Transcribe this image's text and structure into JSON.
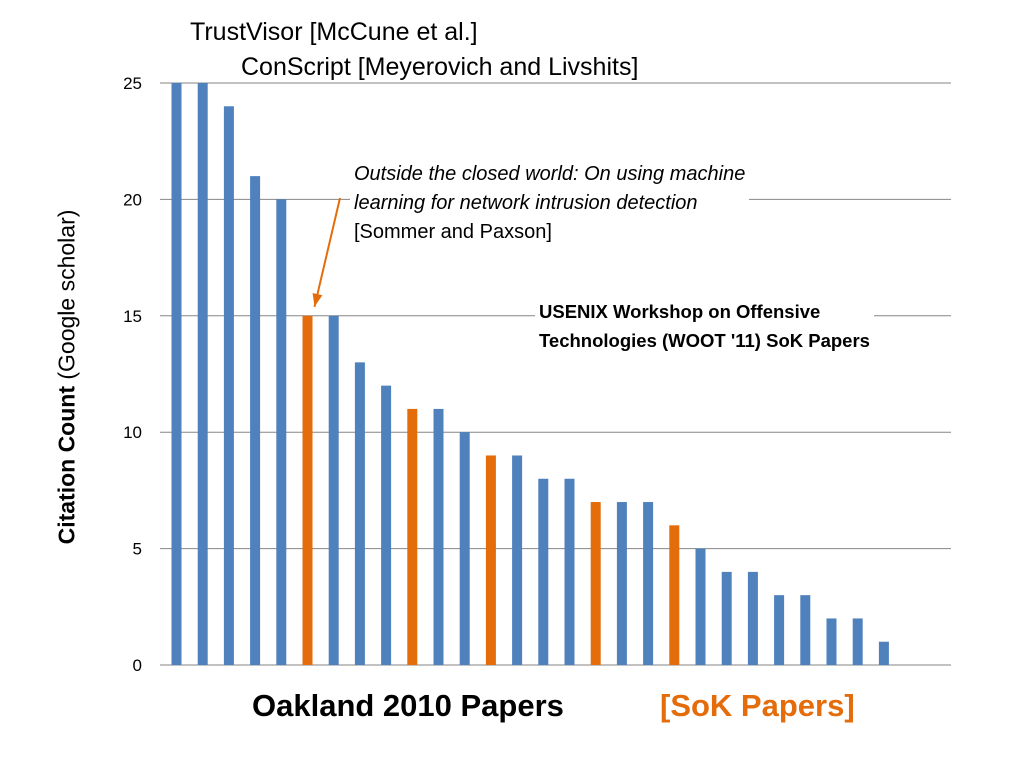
{
  "chart_data": {
    "type": "bar",
    "ylabel_bold": "Citation Count",
    "ylabel_rest": "(Google scholar)",
    "xlabel": "Oakland 2010 Papers",
    "xlabel_secondary": "[SoK Papers]",
    "ylim": [
      0,
      25
    ],
    "yticks": [
      "0",
      "5",
      "10",
      "15",
      "20",
      "25"
    ],
    "grid": true,
    "values": [
      25,
      25,
      24,
      21,
      20,
      15,
      15,
      13,
      12,
      11,
      11,
      10,
      9,
      9,
      8,
      8,
      7,
      7,
      7,
      6,
      5,
      4,
      4,
      3,
      3,
      2,
      2,
      1
    ],
    "sok_indices": [
      5,
      9,
      12,
      16,
      19
    ],
    "colors": {
      "regular": "#4f81bd",
      "sok": "#e46c0a",
      "grid": "#868686",
      "arrow": "#e46c0a"
    },
    "annotations": {
      "trustvisor": "TrustVisor [McCune et al.]",
      "conscript": "ConScript [Meyerovich and Livshits]",
      "outside_line1": "Outside the closed world: On using machine",
      "outside_line2": "learning for network intrusion detection",
      "outside_line3": "[Sommer and Paxson]",
      "woot_line1": "USENIX Workshop on Offensive",
      "woot_line2": "Technologies (WOOT '11) SoK Papers"
    }
  }
}
